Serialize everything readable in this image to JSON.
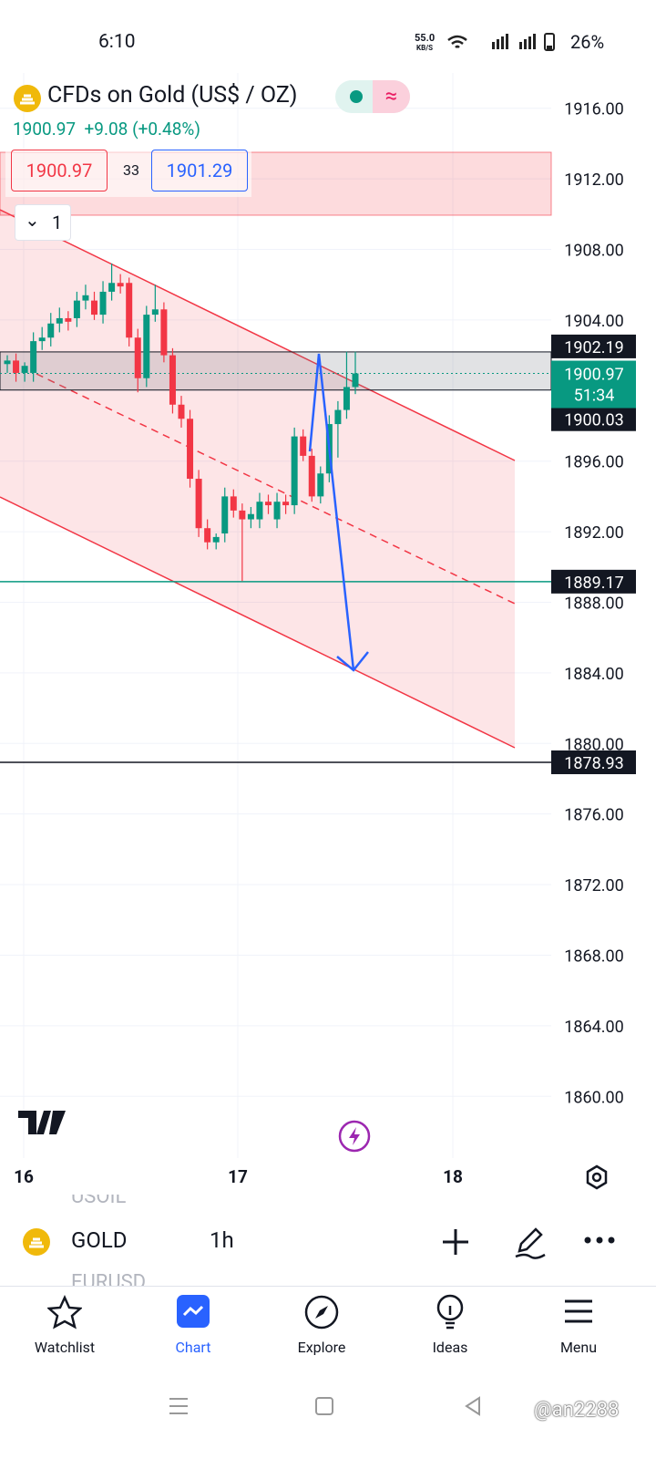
{
  "status_bar": {
    "time": "6:10",
    "speed": "55.0",
    "speed_unit": "KB/S",
    "battery": "26%"
  },
  "header": {
    "title": "CFDs on Gold (US$ / OZ)",
    "price": "1900.97",
    "change": "+9.08 (+0.48%)",
    "bid": "1900.97",
    "spread": "33",
    "ask": "1901.29",
    "collapse": "1"
  },
  "chart_data": {
    "type": "candlestick",
    "open": [
      1901.5,
      1901.7,
      1901.0,
      1901.0,
      1902.8,
      1903.0,
      1903.8,
      1904.1,
      1904.1,
      1905.1,
      1905.1,
      1904.3,
      1905.6,
      1906.1,
      1906.1,
      1903.0,
      1900.7,
      1904.3,
      1904.6,
      1902.0,
      1899.2,
      1898.4,
      1895.0,
      1892.2,
      1891.4,
      1891.9,
      1894.0,
      1893.2,
      1892.7,
      1892.7,
      1893.7,
      1892.7,
      1893.7,
      1893.5,
      1897.4,
      1896.3,
      1894.0,
      1895.3,
      1898.1,
      1898.9,
      1900.2
    ],
    "high": [
      1902.0,
      1902.1,
      1901.6,
      1903.3,
      1903.6,
      1904.4,
      1904.7,
      1904.5,
      1905.6,
      1906.0,
      1905.6,
      1906.2,
      1907.2,
      1906.6,
      1906.4,
      1903.5,
      1904.8,
      1906.0,
      1905.0,
      1902.4,
      1899.7,
      1898.9,
      1895.5,
      1892.7,
      1891.9,
      1894.5,
      1894.4,
      1893.6,
      1893.4,
      1894.2,
      1894.1,
      1894.2,
      1894.1,
      1897.9,
      1897.8,
      1896.7,
      1895.7,
      1898.6,
      1899.4,
      1902.2,
      1902.2
    ],
    "low": [
      1901.0,
      1900.5,
      1900.5,
      1900.5,
      1902.3,
      1902.5,
      1903.3,
      1903.4,
      1903.6,
      1904.6,
      1904.0,
      1903.8,
      1905.1,
      1905.5,
      1902.5,
      1899.9,
      1900.2,
      1903.9,
      1901.6,
      1898.7,
      1897.9,
      1894.5,
      1891.7,
      1891.0,
      1891.0,
      1891.4,
      1892.8,
      1889.2,
      1892.2,
      1892.2,
      1893.0,
      1892.2,
      1893.0,
      1893.0,
      1896.0,
      1893.7,
      1893.6,
      1894.8,
      1896.2,
      1898.4,
      1899.8
    ],
    "close": [
      1901.7,
      1901.0,
      1901.4,
      1902.8,
      1903.0,
      1903.8,
      1904.1,
      1903.9,
      1905.1,
      1905.4,
      1904.3,
      1905.6,
      1906.1,
      1905.9,
      1903.0,
      1900.7,
      1904.3,
      1904.6,
      1902.0,
      1899.2,
      1898.4,
      1895.0,
      1892.2,
      1891.4,
      1891.7,
      1894.0,
      1893.2,
      1892.7,
      1893.0,
      1893.7,
      1893.5,
      1893.7,
      1893.5,
      1897.4,
      1896.3,
      1894.0,
      1895.3,
      1898.1,
      1898.9,
      1900.2,
      1900.97
    ],
    "up_color": "#089981",
    "down_color": "#f23645",
    "ylim": [
      1856.5,
      1918
    ],
    "yticks": [
      {
        "value": 1916,
        "label": "1916.00"
      },
      {
        "value": 1912,
        "label": "1912.00"
      },
      {
        "value": 1908,
        "label": "1908.00"
      },
      {
        "value": 1904,
        "label": "1904.00"
      },
      {
        "value": 1900,
        "label": "1900.00"
      },
      {
        "value": 1896,
        "label": "1896.00"
      },
      {
        "value": 1892,
        "label": "1892.00"
      },
      {
        "value": 1888,
        "label": "1888.00"
      },
      {
        "value": 1884,
        "label": "1884.00"
      },
      {
        "value": 1880,
        "label": "1880.00"
      },
      {
        "value": 1876,
        "label": "1876.00"
      },
      {
        "value": 1872,
        "label": "1872.00"
      },
      {
        "value": 1868,
        "label": "1868.00"
      },
      {
        "value": 1864,
        "label": "1864.00"
      },
      {
        "value": 1860,
        "label": "1860.00"
      }
    ],
    "xticks": [
      "16",
      "17",
      "18"
    ],
    "levels": {
      "zone_top": 1902.19,
      "current": 1900.97,
      "countdown": "51:34",
      "zone_bottom": 1900.03,
      "support": 1889.17,
      "target": 1878.93
    }
  },
  "toolbar": {
    "prev_symbol": "USOIL",
    "symbol": "GOLD",
    "interval": "1h",
    "next_symbol": "EURUSD"
  },
  "nav": [
    "Watchlist",
    "Chart",
    "Explore",
    "Ideas",
    "Menu"
  ],
  "watermark": "@an2288"
}
